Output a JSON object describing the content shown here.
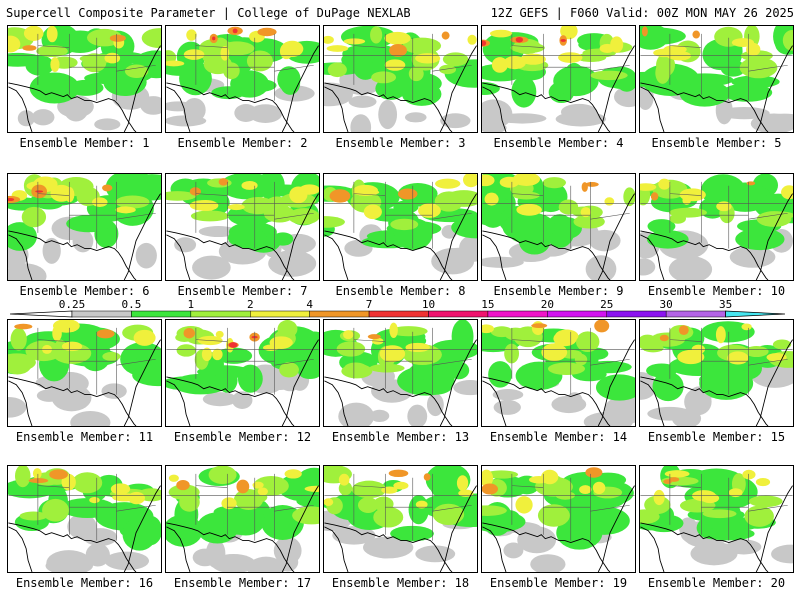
{
  "header": {
    "title_left": "Supercell Composite Parameter | College of DuPage NEXLAB",
    "title_right": "12Z GEFS | F060 Valid: 00Z MON MAY 26 2025"
  },
  "legend": {
    "labels": [
      "0.25",
      "0.5",
      "1",
      "2",
      "4",
      "7",
      "10",
      "15",
      "20",
      "25",
      "30",
      "35"
    ],
    "colors": [
      "#c8c8c8",
      "#3ce63c",
      "#a0f03c",
      "#f0f03c",
      "#f09628",
      "#f03232",
      "#f0146e",
      "#f014c8",
      "#d214f0",
      "#8c14f0",
      "#b464e6",
      "#46e6f0"
    ]
  },
  "map": {
    "land_color": "#ffffff",
    "water_color": "#ffffff",
    "border_color": "#555555"
  },
  "panels": [
    {
      "label": "Ensemble Member: 1",
      "intensity": 0.55
    },
    {
      "label": "Ensemble Member: 2",
      "intensity": 0.7
    },
    {
      "label": "Ensemble Member: 3",
      "intensity": 0.6
    },
    {
      "label": "Ensemble Member: 4",
      "intensity": 0.85
    },
    {
      "label": "Ensemble Member: 5",
      "intensity": 0.5
    },
    {
      "label": "Ensemble Member: 6",
      "intensity": 0.65
    },
    {
      "label": "Ensemble Member: 7",
      "intensity": 0.5
    },
    {
      "label": "Ensemble Member: 8",
      "intensity": 0.55
    },
    {
      "label": "Ensemble Member: 9",
      "intensity": 0.6
    },
    {
      "label": "Ensemble Member: 10",
      "intensity": 0.45
    },
    {
      "label": "Ensemble Member: 11",
      "intensity": 0.4
    },
    {
      "label": "Ensemble Member: 12",
      "intensity": 0.65
    },
    {
      "label": "Ensemble Member: 13",
      "intensity": 0.35
    },
    {
      "label": "Ensemble Member: 14",
      "intensity": 0.45
    },
    {
      "label": "Ensemble Member: 15",
      "intensity": 0.5
    },
    {
      "label": "Ensemble Member: 16",
      "intensity": 0.55
    },
    {
      "label": "Ensemble Member: 17",
      "intensity": 0.5
    },
    {
      "label": "Ensemble Member: 18",
      "intensity": 0.6
    },
    {
      "label": "Ensemble Member: 19",
      "intensity": 0.45
    },
    {
      "label": "Ensemble Member: 20",
      "intensity": 0.6
    }
  ]
}
